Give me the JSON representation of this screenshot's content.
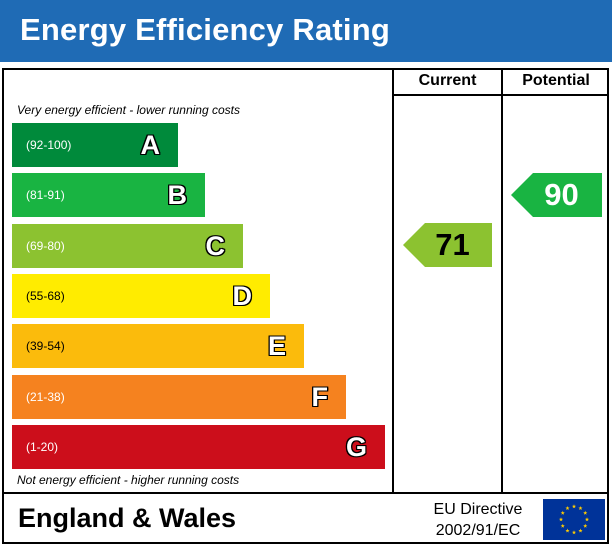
{
  "header": {
    "title": "Energy Efficiency Rating"
  },
  "columns": {
    "current": "Current",
    "potential": "Potential"
  },
  "notes": {
    "top": "Very energy efficient - lower running costs",
    "bottom": "Not energy efficient - higher running costs"
  },
  "colors": {
    "header": "#1f6bb5",
    "A": "#008a3b",
    "B": "#19b442",
    "C": "#8cc230",
    "D": "#ffec00",
    "E": "#fbbb0c",
    "F": "#f5821f",
    "G": "#cc0e1b",
    "flag": "#003399",
    "stars": "#ffcc00"
  },
  "chart_data": {
    "type": "bar",
    "title": "Energy Efficiency Rating",
    "bands": [
      {
        "letter": "A",
        "range": "(92-100)",
        "min": 92,
        "max": 100
      },
      {
        "letter": "B",
        "range": "(81-91)",
        "min": 81,
        "max": 91
      },
      {
        "letter": "C",
        "range": "(69-80)",
        "min": 69,
        "max": 80
      },
      {
        "letter": "D",
        "range": "(55-68)",
        "min": 55,
        "max": 68
      },
      {
        "letter": "E",
        "range": "(39-54)",
        "min": 39,
        "max": 54
      },
      {
        "letter": "F",
        "range": "(21-38)",
        "min": 21,
        "max": 38
      },
      {
        "letter": "G",
        "range": "(1-20)",
        "min": 1,
        "max": 20
      }
    ],
    "current": {
      "value": 71,
      "band": "C"
    },
    "potential": {
      "value": 90,
      "band": "B"
    }
  },
  "footer": {
    "region": "England & Wales",
    "directive_line1": "EU Directive",
    "directive_line2": "2002/91/EC"
  }
}
